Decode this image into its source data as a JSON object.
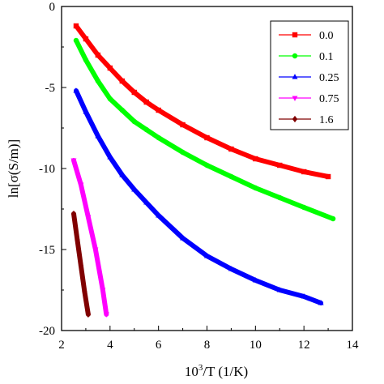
{
  "chart_data": {
    "type": "scatter",
    "xlabel_base": "10",
    "xlabel_sup": "3",
    "xlabel_rest": "/T  (1/K)",
    "ylabel": "ln[σ(S/m)]",
    "xlim": [
      2,
      14
    ],
    "ylim": [
      -20,
      0
    ],
    "xticks": [
      2,
      4,
      6,
      8,
      10,
      12,
      14
    ],
    "yticks": [
      0,
      -5,
      -10,
      -15,
      -20
    ],
    "legend_position": "top-right",
    "series": [
      {
        "name": "0.0",
        "color": "#ff0000",
        "marker": "square",
        "x": [
          2.6,
          3.0,
          3.5,
          4.0,
          4.5,
          5.0,
          5.5,
          6.0,
          7.0,
          8.0,
          9.0,
          10.0,
          11.0,
          12.0,
          13.0
        ],
        "y": [
          -1.2,
          -2.0,
          -3.0,
          -3.8,
          -4.6,
          -5.3,
          -5.9,
          -6.4,
          -7.3,
          -8.1,
          -8.8,
          -9.4,
          -9.8,
          -10.2,
          -10.5
        ]
      },
      {
        "name": "0.1",
        "color": "#00ff00",
        "marker": "circle",
        "x": [
          2.6,
          3.0,
          3.5,
          4.0,
          4.5,
          5.0,
          5.5,
          6.0,
          7.0,
          8.0,
          9.0,
          10.0,
          11.0,
          12.0,
          13.2
        ],
        "y": [
          -2.1,
          -3.3,
          -4.6,
          -5.7,
          -6.4,
          -7.1,
          -7.6,
          -8.1,
          -9.0,
          -9.8,
          -10.5,
          -11.2,
          -11.8,
          -12.4,
          -13.1
        ]
      },
      {
        "name": "0.25",
        "color": "#0000ff",
        "marker": "triangle-up",
        "x": [
          2.6,
          3.0,
          3.5,
          4.0,
          4.5,
          5.0,
          5.5,
          6.0,
          7.0,
          8.0,
          9.0,
          10.0,
          11.0,
          12.0,
          12.7
        ],
        "y": [
          -5.2,
          -6.5,
          -8.0,
          -9.3,
          -10.4,
          -11.3,
          -12.1,
          -12.9,
          -14.3,
          -15.4,
          -16.2,
          -16.9,
          -17.5,
          -17.9,
          -18.3
        ]
      },
      {
        "name": "0.75",
        "color": "#ff00ff",
        "marker": "triangle-down",
        "x": [
          2.5,
          2.8,
          3.1,
          3.4,
          3.7,
          3.85
        ],
        "y": [
          -9.5,
          -11.0,
          -13.0,
          -15.0,
          -17.5,
          -19.0
        ]
      },
      {
        "name": "1.6",
        "color": "#800000",
        "marker": "diamond",
        "x": [
          2.5,
          2.65,
          2.8,
          2.95,
          3.1
        ],
        "y": [
          -12.8,
          -14.4,
          -16.0,
          -17.6,
          -19.0
        ]
      }
    ]
  }
}
